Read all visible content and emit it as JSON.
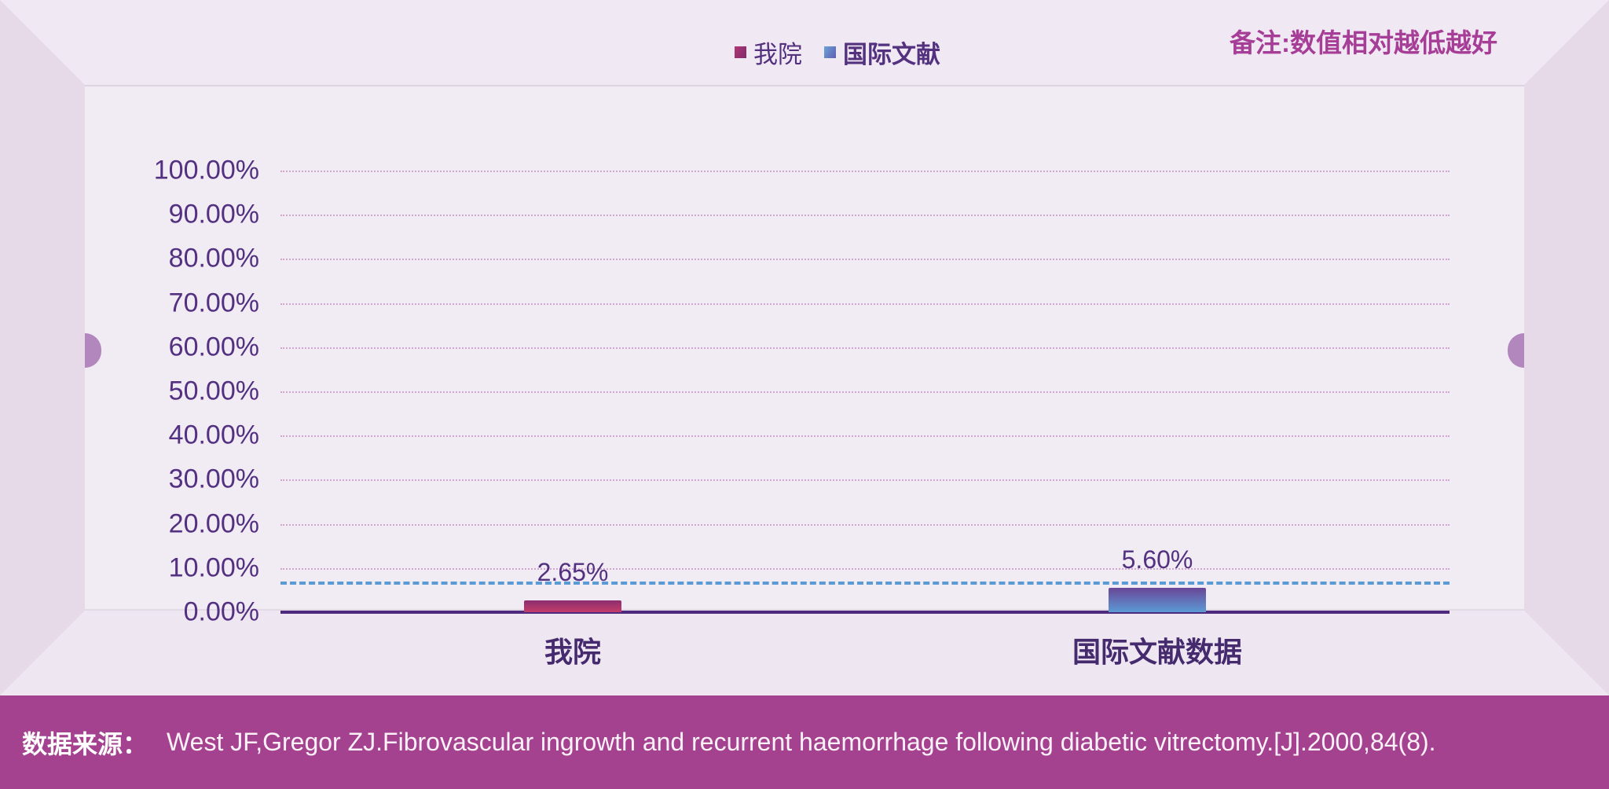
{
  "note": {
    "text": "备注:数值相对越低越好"
  },
  "legend": {
    "items": [
      {
        "label": "我院"
      },
      {
        "label": "国际文献"
      }
    ]
  },
  "chart_data": {
    "type": "bar",
    "title": "",
    "categories": [
      "我院",
      "国际文献数据"
    ],
    "values": [
      2.65,
      5.6
    ],
    "value_labels": [
      "2.65%",
      "5.60%"
    ],
    "ylim": [
      0,
      100
    ],
    "yticks": [
      "100.00%",
      "90.00%",
      "80.00%",
      "70.00%",
      "60.00%",
      "50.00%",
      "40.00%",
      "30.00%",
      "20.00%",
      "10.00%",
      "0.00%"
    ],
    "grid": true,
    "legend_position": "top",
    "reference_line": {
      "value": 5.6,
      "style": "dashed",
      "color": "#5b9bd5"
    },
    "bar_gradients": [
      {
        "from": "#8c2e70",
        "to": "#c33c69"
      },
      {
        "from": "#6a4697",
        "to": "#5b9bd5"
      }
    ]
  },
  "footer": {
    "label": "数据来源：",
    "text": "West JF,Gregor ZJ.Fibrovascular ingrowth and recurrent haemorrhage following diabetic vitrectomy.[J].2000,84(8)."
  },
  "colors": {
    "frame_side": "#e6dae9",
    "frame_facet": "#f0e9f3",
    "panel": "#f1ebf4",
    "tab": "#b287bd",
    "axis_text": "#533180",
    "category_text": "#452a6e",
    "note_text": "#a63d96",
    "footer_bg": "#a4428f",
    "footer_text": "#ffffff",
    "gridline": "#c48fc2",
    "axis_line": "#4e2a7e",
    "reference": "#5b9bd5"
  }
}
